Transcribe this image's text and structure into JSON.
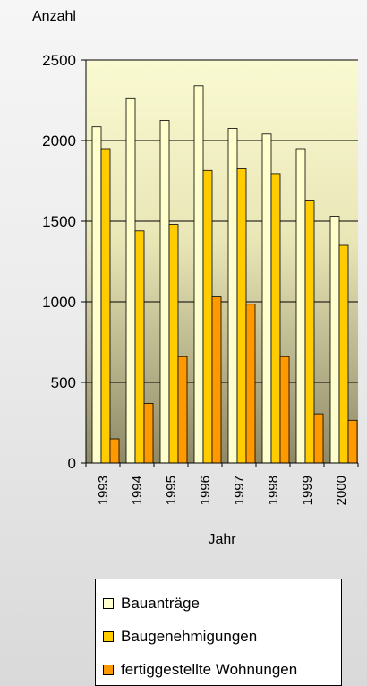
{
  "chart_data": {
    "type": "bar",
    "ylabel": "Anzahl",
    "xlabel": "Jahr",
    "ylim": [
      0,
      2500
    ],
    "yticks": [
      0,
      500,
      1000,
      1500,
      2000,
      2500
    ],
    "grid": true,
    "legend_position": "bottom",
    "categories": [
      "1993",
      "1994",
      "1995",
      "1996",
      "1997",
      "1998",
      "1999",
      "2000"
    ],
    "series": [
      {
        "name": "Bauanträge",
        "color": "#ffffcc",
        "values": [
          2085,
          2265,
          2125,
          2340,
          2075,
          2040,
          1950,
          1530
        ]
      },
      {
        "name": "Baugenehmigungen",
        "color": "#ffcc00",
        "values": [
          1950,
          1440,
          1480,
          1815,
          1825,
          1795,
          1630,
          1350
        ]
      },
      {
        "name": "fertiggestellte Wohnungen",
        "color": "#ff9900",
        "values": [
          150,
          370,
          660,
          1030,
          985,
          660,
          305,
          265
        ]
      }
    ]
  }
}
